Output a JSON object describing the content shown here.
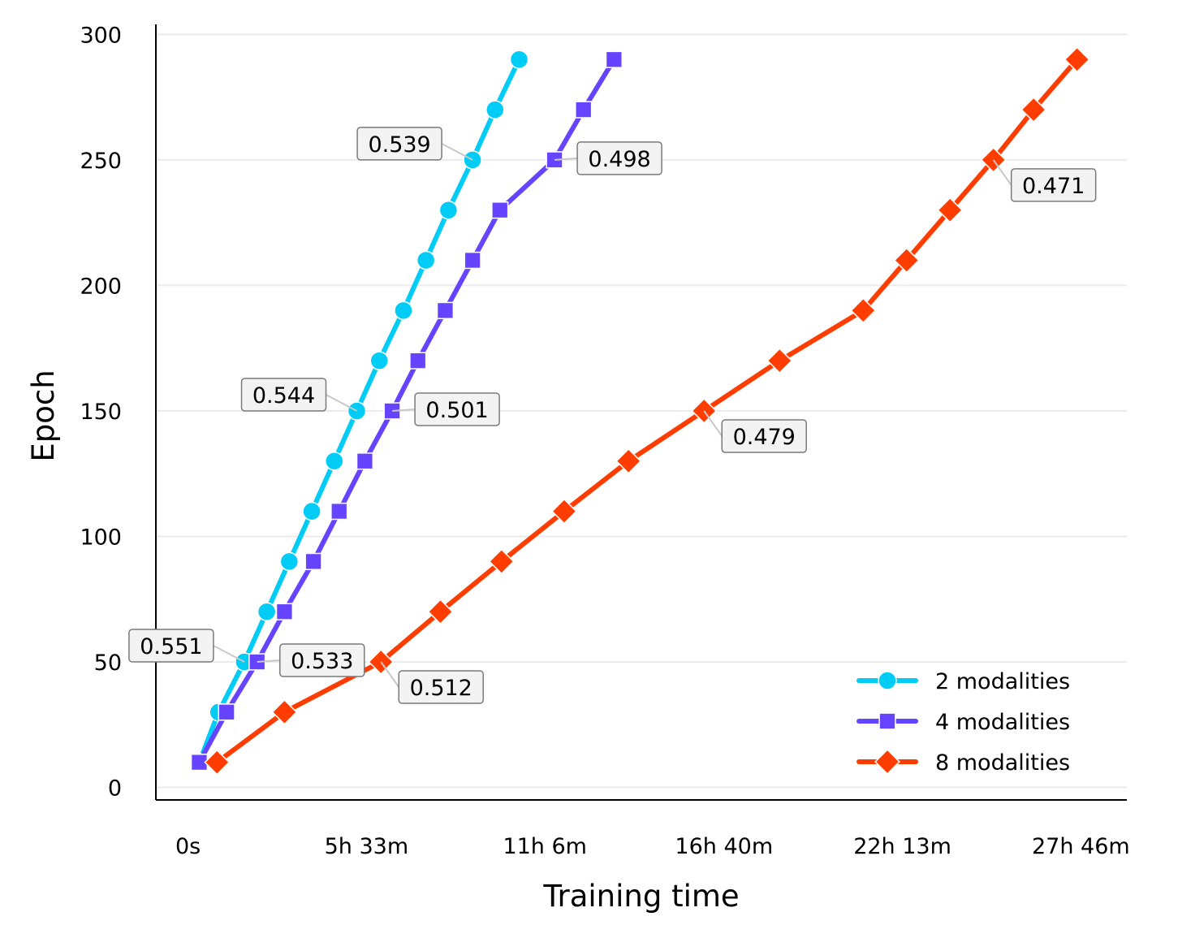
{
  "chart_data": {
    "type": "line",
    "xlabel": "Training time",
    "ylabel": "Epoch",
    "x_unit": "hours",
    "xlim": [
      -1.0,
      29.2
    ],
    "ylim": [
      -5,
      304
    ],
    "x_ticks": [
      {
        "value": 0,
        "label": "0s"
      },
      {
        "value": 5.55,
        "label": "5h 33m"
      },
      {
        "value": 11.1,
        "label": "11h 6m"
      },
      {
        "value": 16.67,
        "label": "16h 40m"
      },
      {
        "value": 22.22,
        "label": "22h 13m"
      },
      {
        "value": 27.77,
        "label": "27h 46m"
      }
    ],
    "y_ticks": [
      0,
      50,
      100,
      150,
      200,
      250,
      300
    ],
    "grid": "horizontal",
    "legend_position": "lower right",
    "series": [
      {
        "name": "2 modalities",
        "color": "#00CCF5",
        "marker": "circle",
        "points": [
          {
            "x": 0.35,
            "y": 10
          },
          {
            "x": 0.95,
            "y": 30
          },
          {
            "x": 1.75,
            "y": 50
          },
          {
            "x": 2.45,
            "y": 70
          },
          {
            "x": 3.15,
            "y": 90
          },
          {
            "x": 3.85,
            "y": 110
          },
          {
            "x": 4.55,
            "y": 130
          },
          {
            "x": 5.25,
            "y": 150
          },
          {
            "x": 5.95,
            "y": 170
          },
          {
            "x": 6.7,
            "y": 190
          },
          {
            "x": 7.4,
            "y": 210
          },
          {
            "x": 8.1,
            "y": 230
          },
          {
            "x": 8.85,
            "y": 250
          },
          {
            "x": 9.55,
            "y": 270
          },
          {
            "x": 10.3,
            "y": 290
          }
        ],
        "annotations": [
          {
            "x": 1.75,
            "y": 50,
            "text": "0.551",
            "side": "left"
          },
          {
            "x": 5.25,
            "y": 150,
            "text": "0.544",
            "side": "left"
          },
          {
            "x": 8.85,
            "y": 250,
            "text": "0.539",
            "side": "left"
          }
        ]
      },
      {
        "name": "4 modalities",
        "color": "#6644FF",
        "marker": "square",
        "points": [
          {
            "x": 0.35,
            "y": 10
          },
          {
            "x": 1.2,
            "y": 30
          },
          {
            "x": 2.15,
            "y": 50
          },
          {
            "x": 3.0,
            "y": 70
          },
          {
            "x": 3.9,
            "y": 90
          },
          {
            "x": 4.7,
            "y": 110
          },
          {
            "x": 5.5,
            "y": 130
          },
          {
            "x": 6.35,
            "y": 150
          },
          {
            "x": 7.15,
            "y": 170
          },
          {
            "x": 8.0,
            "y": 190
          },
          {
            "x": 8.85,
            "y": 210
          },
          {
            "x": 9.7,
            "y": 230
          },
          {
            "x": 11.4,
            "y": 250
          },
          {
            "x": 12.3,
            "y": 270
          },
          {
            "x": 13.25,
            "y": 290
          }
        ],
        "annotations": [
          {
            "x": 2.15,
            "y": 50,
            "text": "0.533",
            "side": "right"
          },
          {
            "x": 6.35,
            "y": 150,
            "text": "0.501",
            "side": "right"
          },
          {
            "x": 11.4,
            "y": 250,
            "text": "0.498",
            "side": "right"
          }
        ]
      },
      {
        "name": "8 modalities",
        "color": "#FF3D00",
        "marker": "diamond",
        "points": [
          {
            "x": 0.9,
            "y": 10
          },
          {
            "x": 3.0,
            "y": 30
          },
          {
            "x": 6.0,
            "y": 50
          },
          {
            "x": 7.85,
            "y": 70
          },
          {
            "x": 9.75,
            "y": 90
          },
          {
            "x": 11.7,
            "y": 110
          },
          {
            "x": 13.7,
            "y": 130
          },
          {
            "x": 16.05,
            "y": 150
          },
          {
            "x": 18.4,
            "y": 170
          },
          {
            "x": 21.0,
            "y": 190
          },
          {
            "x": 22.35,
            "y": 210
          },
          {
            "x": 23.7,
            "y": 230
          },
          {
            "x": 25.05,
            "y": 250
          },
          {
            "x": 26.3,
            "y": 270
          },
          {
            "x": 27.65,
            "y": 290
          }
        ],
        "annotations": [
          {
            "x": 6.0,
            "y": 50,
            "text": "0.512",
            "side": "below-right"
          },
          {
            "x": 16.05,
            "y": 150,
            "text": "0.479",
            "side": "below-right"
          },
          {
            "x": 25.05,
            "y": 250,
            "text": "0.471",
            "side": "below-right"
          }
        ]
      }
    ]
  }
}
